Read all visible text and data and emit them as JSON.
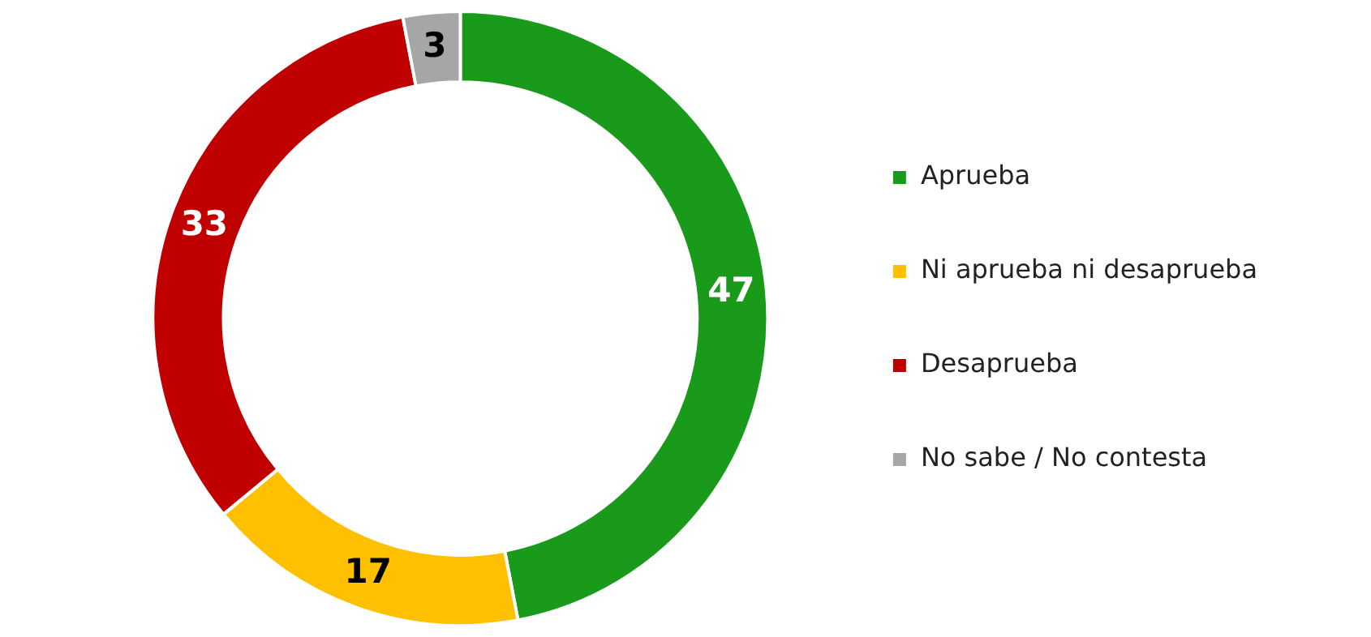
{
  "chart_data": {
    "type": "donut",
    "categories": [
      "Aprueba",
      "Ni aprueba ni desaprueba",
      "Desaprueba",
      "No sabe / No contesta"
    ],
    "values": [
      47,
      17,
      33,
      3
    ],
    "colors": [
      "#1a9a1a",
      "#ffc000",
      "#c00000",
      "#a6a6a6"
    ],
    "data_labels": true,
    "legend": "right"
  }
}
